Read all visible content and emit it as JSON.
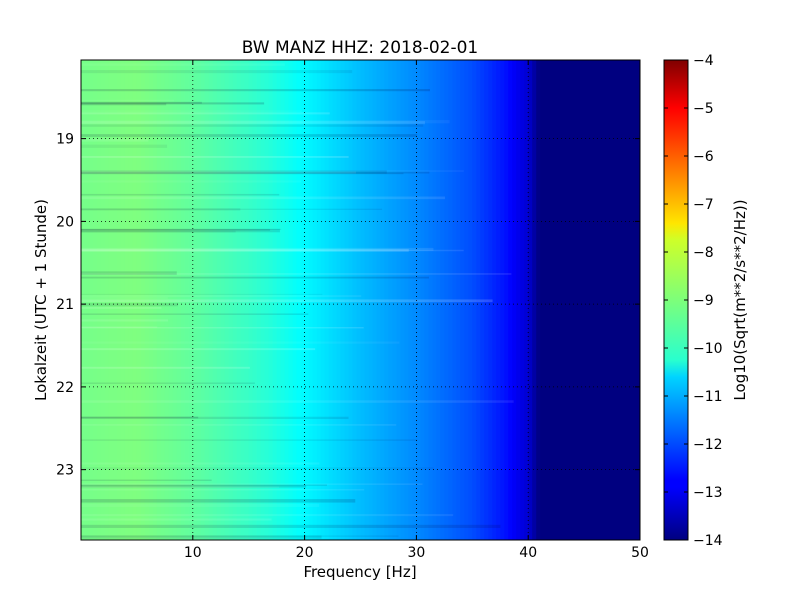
{
  "chart_data": {
    "type": "heatmap",
    "title": "BW MANZ HHZ: 2018-02-01",
    "xlabel": "Frequency [Hz]",
    "ylabel": "Lokalzeit (UTC + 1 Stunde)",
    "colorbar_label": "Log10(Sqrt(m**2/s**2/Hz))",
    "xlim": [
      0,
      50
    ],
    "ylim": [
      18.05,
      23.85
    ],
    "y_inverted": true,
    "x_ticks": [
      10,
      20,
      30,
      40,
      50
    ],
    "y_ticks": [
      19,
      20,
      21,
      22,
      23
    ],
    "colorbar_ticks": [
      -4,
      -5,
      -6,
      -7,
      -8,
      -9,
      -10,
      -11,
      -12,
      -13,
      -14
    ],
    "colorbar_range": [
      -14,
      -4
    ],
    "colormap": "jet",
    "grid": true,
    "profile": {
      "frequency_hz": [
        0,
        5,
        10,
        15,
        17,
        20,
        25,
        30,
        35,
        38,
        40,
        41,
        50
      ],
      "log_amplitude": [
        -9.1,
        -9.0,
        -9.3,
        -9.7,
        -9.9,
        -10.3,
        -10.9,
        -11.4,
        -12.0,
        -12.6,
        -13.2,
        -14.0,
        -14.0
      ]
    }
  }
}
